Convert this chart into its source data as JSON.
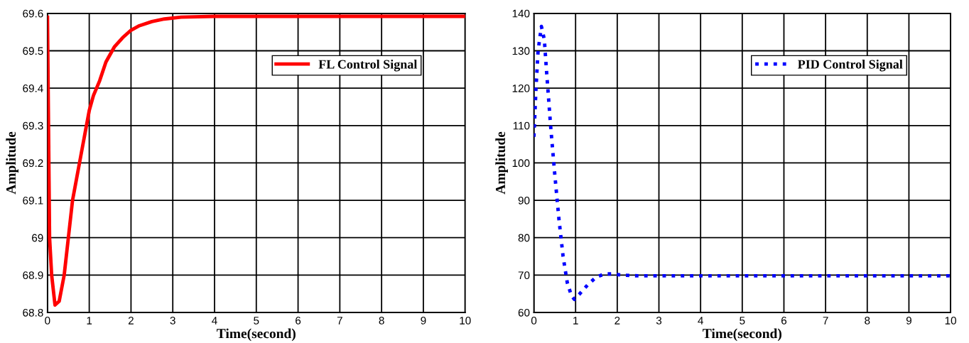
{
  "chart_data": [
    {
      "type": "line",
      "xlabel": "Time(second)",
      "ylabel": "Amplitude",
      "xlim": [
        0,
        10
      ],
      "ylim": [
        68.8,
        69.6
      ],
      "xticks": [
        0,
        1,
        2,
        3,
        4,
        5,
        6,
        7,
        8,
        9,
        10
      ],
      "yticks": [
        68.8,
        68.9,
        69,
        69.1,
        69.2,
        69.3,
        69.4,
        69.5,
        69.6
      ],
      "grid": true,
      "legend": "top right",
      "line_style": "solid",
      "series": [
        {
          "name": "FL Control Signal",
          "color": "#ff0000",
          "x": [
            0,
            0.05,
            0.1,
            0.18,
            0.28,
            0.4,
            0.5,
            0.6,
            0.7,
            0.8,
            0.9,
            1.0,
            1.1,
            1.25,
            1.4,
            1.6,
            1.8,
            2.0,
            2.2,
            2.5,
            2.8,
            3.2,
            4,
            5,
            10
          ],
          "values": [
            69.59,
            69.0,
            68.9,
            68.82,
            68.83,
            68.9,
            69.0,
            69.1,
            69.16,
            69.22,
            69.28,
            69.34,
            69.38,
            69.42,
            69.47,
            69.51,
            69.535,
            69.555,
            69.567,
            69.578,
            69.585,
            69.59,
            69.592,
            69.592,
            69.592
          ]
        }
      ]
    },
    {
      "type": "line",
      "xlabel": "Time(second)",
      "ylabel": "Amplitude",
      "xlim": [
        0,
        10
      ],
      "ylim": [
        60,
        140
      ],
      "xticks": [
        0,
        1,
        2,
        3,
        4,
        5,
        6,
        7,
        8,
        9,
        10
      ],
      "yticks": [
        60,
        70,
        80,
        90,
        100,
        110,
        120,
        130,
        140
      ],
      "grid": true,
      "legend": "top right",
      "line_style": "dotted",
      "series": [
        {
          "name": "PID Control Signal",
          "color": "#0000ff",
          "x": [
            0,
            0.05,
            0.1,
            0.18,
            0.25,
            0.3,
            0.4,
            0.5,
            0.6,
            0.7,
            0.8,
            0.9,
            0.97,
            1.1,
            1.3,
            1.5,
            1.7,
            1.9,
            2.1,
            2.5,
            5,
            10
          ],
          "values": [
            107,
            120,
            130,
            136.5,
            133,
            125,
            110,
            97,
            85,
            75,
            68,
            64.5,
            63.5,
            65,
            67.5,
            69.5,
            70.3,
            70.3,
            70,
            69.8,
            69.8,
            69.8
          ]
        }
      ]
    }
  ]
}
